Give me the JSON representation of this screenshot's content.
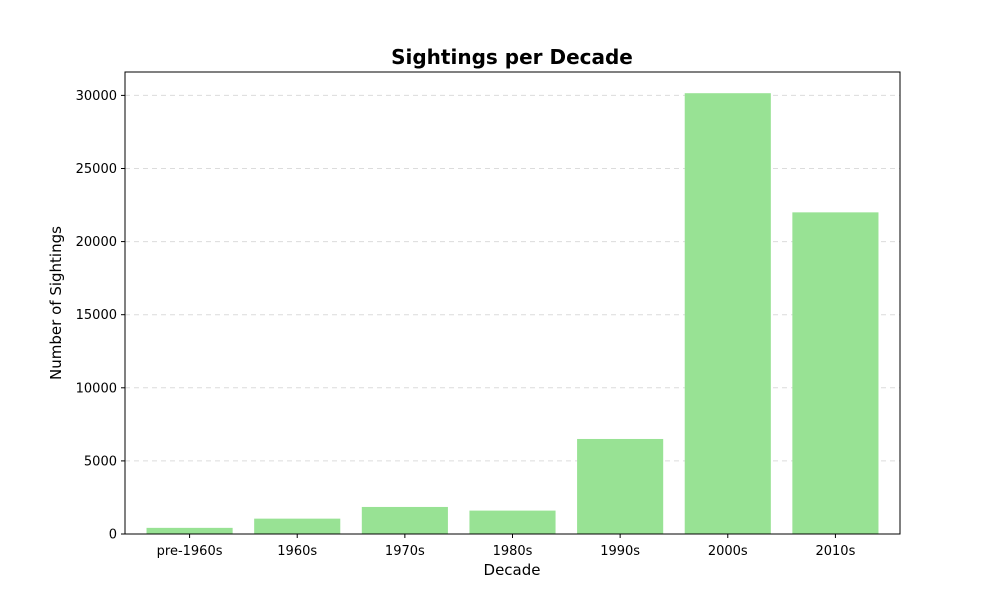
{
  "chart_data": {
    "type": "bar",
    "title": "Sightings per Decade",
    "xlabel": "Decade",
    "ylabel": "Number of Sightings",
    "categories": [
      "pre-1960s",
      "1960s",
      "1970s",
      "1980s",
      "1990s",
      "2000s",
      "2010s"
    ],
    "values": [
      420,
      1050,
      1850,
      1600,
      6500,
      30150,
      22000
    ],
    "ylim": [
      0,
      31600
    ],
    "yticks": [
      0,
      5000,
      10000,
      15000,
      20000,
      25000,
      30000
    ],
    "ytick_labels": [
      "0",
      "5000",
      "10000",
      "15000",
      "20000",
      "25000",
      "30000"
    ],
    "grid": "horizontal dashed",
    "bar_color": "#98e294",
    "gridline_color": "#dcdcdc"
  }
}
